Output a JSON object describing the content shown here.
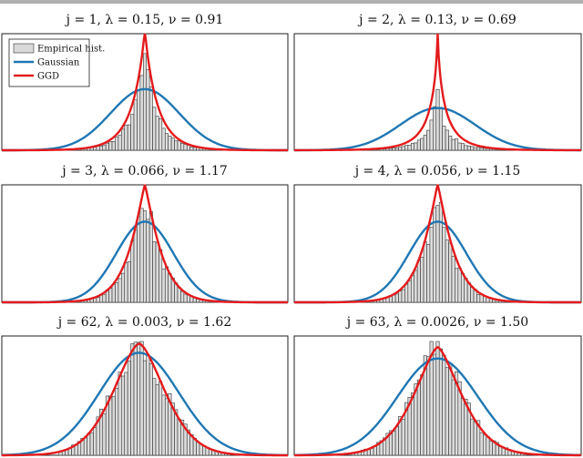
{
  "legend": {
    "entries": [
      {
        "label": "Empirical hist.",
        "kind": "histogram",
        "color": "#d9d9d9"
      },
      {
        "label": "Gaussian",
        "kind": "line",
        "color": "#1f77b4"
      },
      {
        "label": "GGD",
        "kind": "line",
        "color": "#e41a1c"
      }
    ]
  },
  "chart_data": [
    {
      "type": "bar",
      "title": "j = 1,    λ = 0.15,    ν = 0.91",
      "center": 0.5,
      "gauss_height": 0.55,
      "gauss_width": 0.12,
      "ggd_height": 1.1,
      "ggd_width": 0.045,
      "ggd_shape": 0.91,
      "hist_height": 0.85,
      "bins": 55
    },
    {
      "type": "bar",
      "title": "j = 2,    λ = 0.13,    ν = 0.69",
      "center": 0.5,
      "gauss_height": 0.38,
      "gauss_width": 0.13,
      "ggd_height": 1.1,
      "ggd_width": 0.025,
      "ggd_shape": 0.69,
      "hist_height": 0.62,
      "bins": 55
    },
    {
      "type": "bar",
      "title": "j = 3,    λ = 0.066,    ν = 1.17",
      "center": 0.5,
      "gauss_height": 0.72,
      "gauss_width": 0.1,
      "ggd_height": 1.05,
      "ggd_width": 0.065,
      "ggd_shape": 1.17,
      "hist_height": 0.95,
      "bins": 55
    },
    {
      "type": "bar",
      "title": "j = 4,    λ = 0.056,    ν = 1.15",
      "center": 0.5,
      "gauss_height": 0.72,
      "gauss_width": 0.1,
      "ggd_height": 1.05,
      "ggd_width": 0.065,
      "ggd_shape": 1.15,
      "hist_height": 0.95,
      "bins": 55
    },
    {
      "type": "bar",
      "title": "j = 62,    λ = 0.003,    ν = 1.62",
      "center": 0.48,
      "gauss_height": 0.9,
      "gauss_width": 0.14,
      "ggd_height": 0.98,
      "ggd_width": 0.13,
      "ggd_shape": 1.62,
      "hist_height": 1.0,
      "bins": 55
    },
    {
      "type": "bar",
      "title": "j = 63,    λ = 0.0026,    ν = 1.50",
      "center": 0.5,
      "gauss_height": 0.85,
      "gauss_width": 0.14,
      "ggd_height": 0.95,
      "ggd_width": 0.12,
      "ggd_shape": 1.5,
      "hist_height": 0.98,
      "bins": 55
    }
  ]
}
